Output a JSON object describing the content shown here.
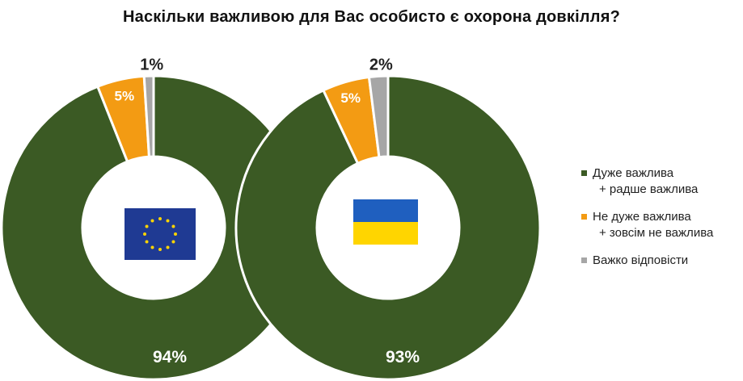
{
  "title": "Наскільки важливою для Вас особисто є охорона довкілля?",
  "colors": {
    "important": "#3b5a24",
    "not_important": "#f39b13",
    "hard_to_say": "#a6a6a6"
  },
  "legend": [
    {
      "series": "important",
      "line1": "Дуже важлива",
      "line2": "+ радше важлива"
    },
    {
      "series": "not_important",
      "line1": "Не дуже важлива",
      "line2": "+ зовсім не важлива"
    },
    {
      "series": "hard_to_say",
      "line1": "Важко відповісти",
      "line2": ""
    }
  ],
  "chart_data": [
    {
      "type": "pie",
      "flag": "eu-flag",
      "series": [
        {
          "name": "Дуже важлива + радше важлива",
          "key": "important",
          "value": 94,
          "label": "94%"
        },
        {
          "name": "Не дуже важлива + зовсім не важлива",
          "key": "not_important",
          "value": 5,
          "label": "5%"
        },
        {
          "name": "Важко відповісти",
          "key": "hard_to_say",
          "value": 1,
          "label": "1%"
        }
      ]
    },
    {
      "type": "pie",
      "flag": "ukraine-flag",
      "series": [
        {
          "name": "Дуже важлива + радше важлива",
          "key": "important",
          "value": 93,
          "label": "93%"
        },
        {
          "name": "Не дуже важлива + зовсім не важлива",
          "key": "not_important",
          "value": 5,
          "label": "5%"
        },
        {
          "name": "Важко відповісти",
          "key": "hard_to_say",
          "value": 2,
          "label": "2%"
        }
      ]
    }
  ]
}
